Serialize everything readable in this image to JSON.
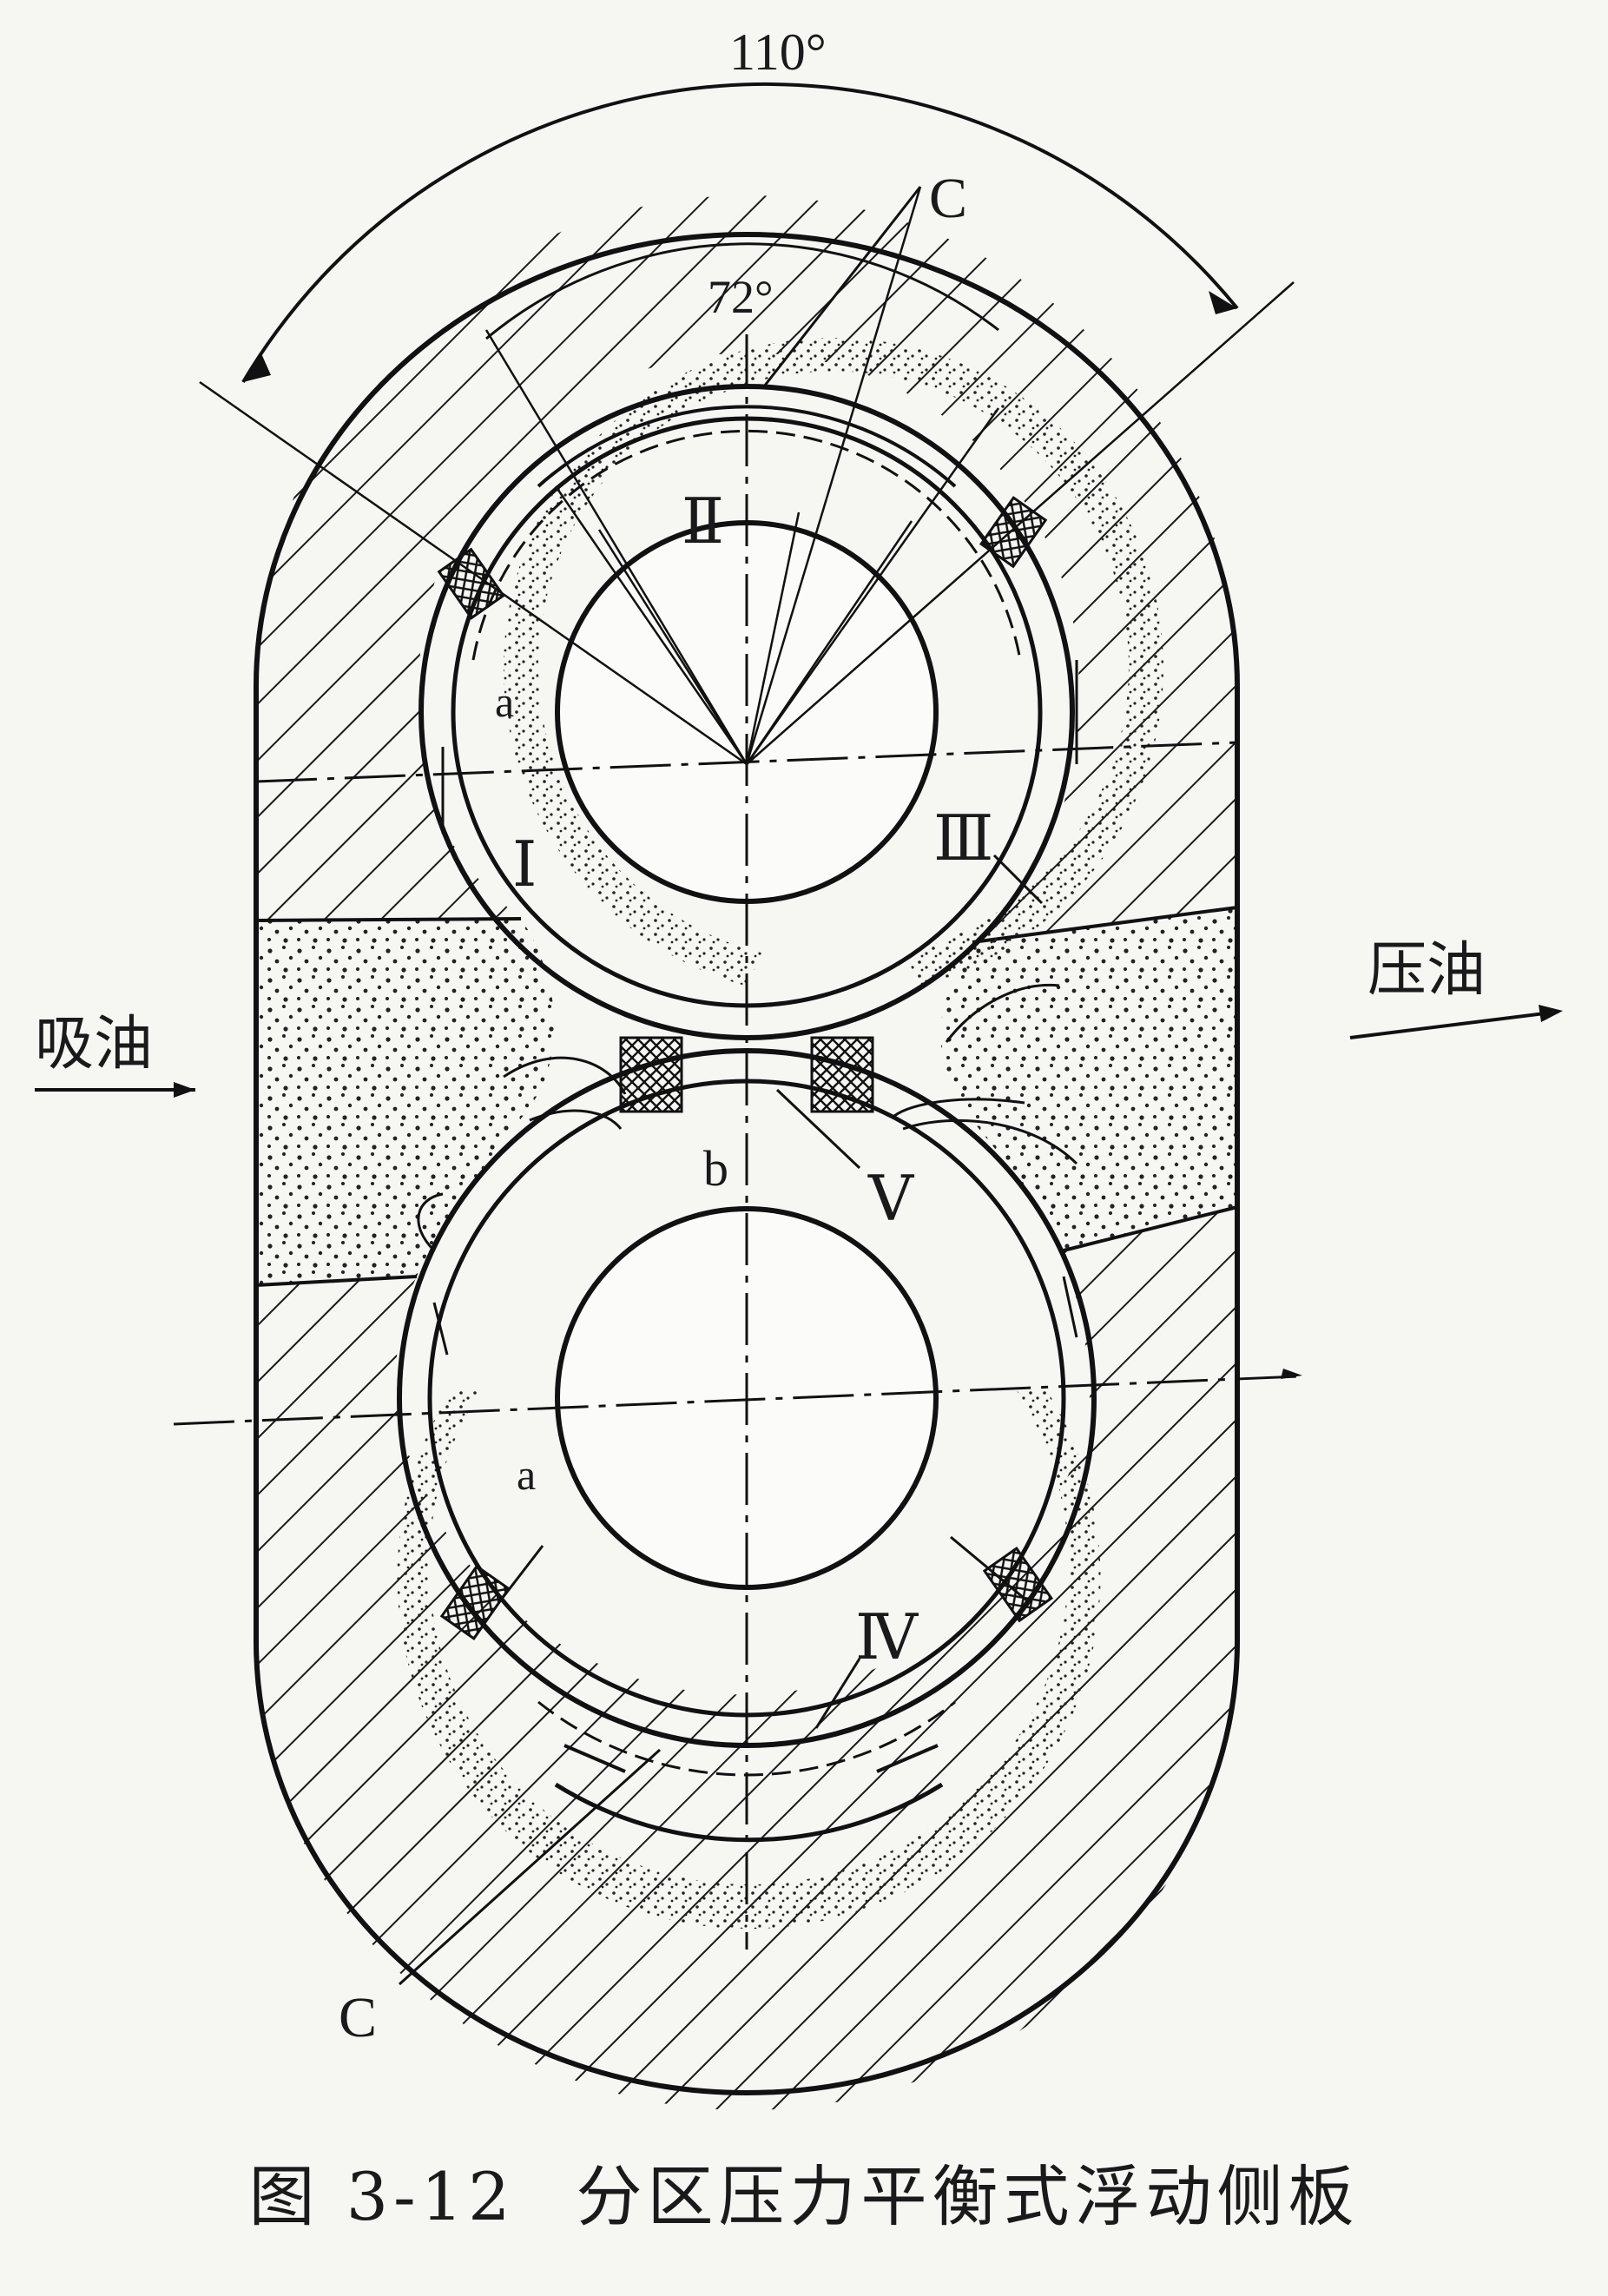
{
  "figure": {
    "label": "图 3-12",
    "title": "分区压力平衡式浮动侧板"
  },
  "ports": {
    "inlet": "吸油",
    "outlet": "压油"
  },
  "angles": {
    "outer": "110°",
    "inner": "72°"
  },
  "section_marks": {
    "top": "C",
    "bottom": "C"
  },
  "zones": {
    "z1": "Ⅰ",
    "z2": "Ⅱ",
    "z3": "Ⅲ",
    "z4": "Ⅳ",
    "z5": "Ⅴ"
  },
  "grooves": {
    "a_top": "a",
    "a_bottom": "a",
    "b": "b"
  }
}
